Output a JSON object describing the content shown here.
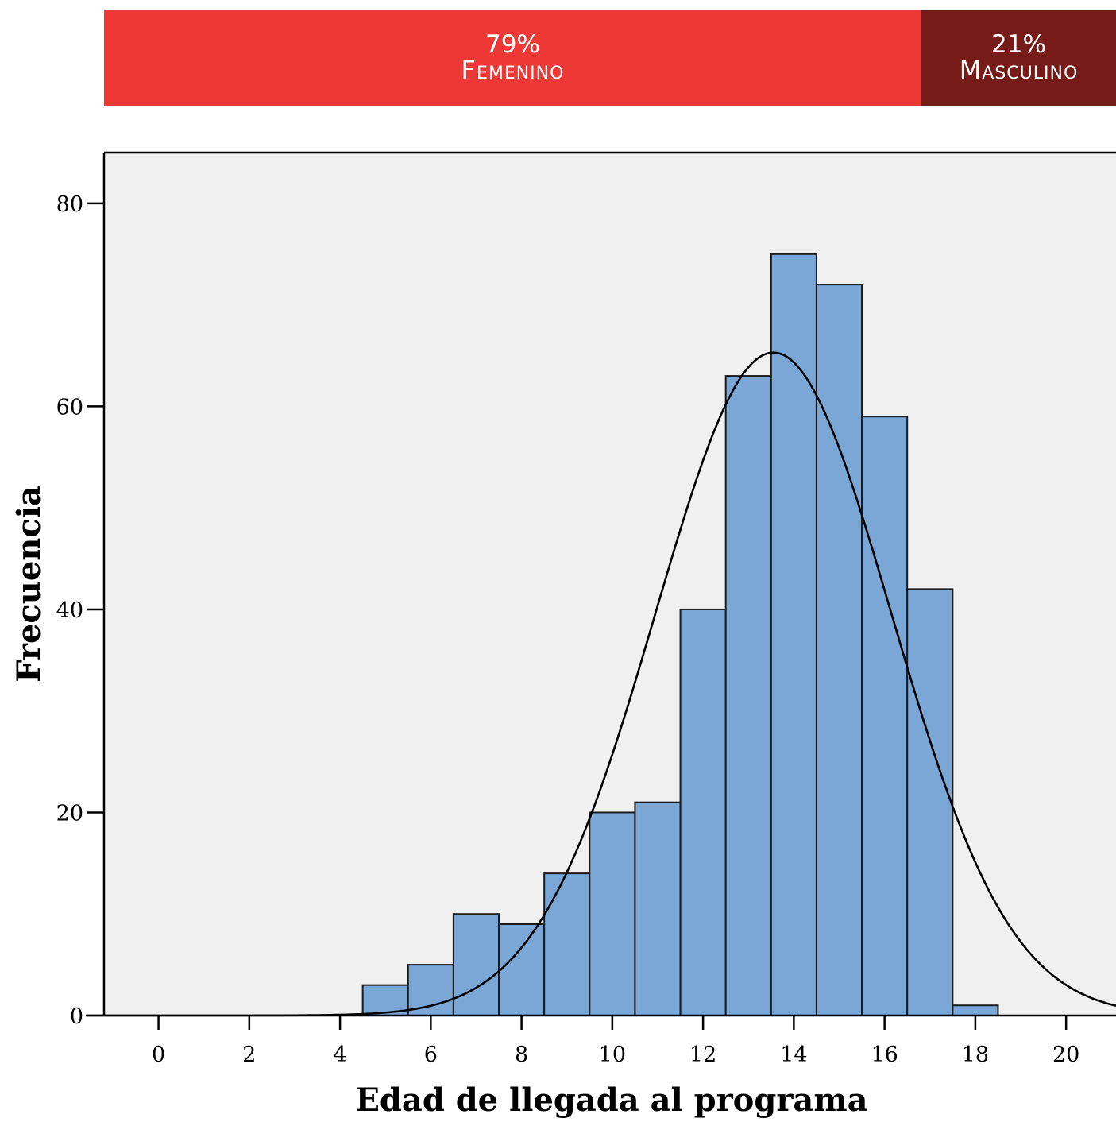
{
  "gender": {
    "female": {
      "percent": "79%",
      "label": "Femenino",
      "share": 0.79,
      "color": "#EE3835"
    },
    "male": {
      "percent": "21%",
      "label": "Masculino",
      "share": 0.21,
      "color": "#771B18"
    }
  },
  "chart_data": {
    "type": "bar",
    "subtype": "histogram",
    "title": "",
    "xlabel": "Edad de llegada al programa",
    "ylabel": "Frecuencia",
    "xlim": [
      -1.2,
      21.1
    ],
    "ylim": [
      0,
      85
    ],
    "x_ticks": [
      0,
      2,
      4,
      6,
      8,
      10,
      12,
      14,
      16,
      18,
      20
    ],
    "y_ticks": [
      0,
      20,
      40,
      60,
      80
    ],
    "bin_width": 1,
    "bins": [
      5,
      6,
      7,
      8,
      9,
      10,
      11,
      12,
      13,
      14,
      15,
      16,
      17,
      18
    ],
    "values": [
      3,
      5,
      10,
      9,
      14,
      20,
      21,
      40,
      63,
      75,
      72,
      59,
      42,
      1
    ],
    "normal_curve": {
      "mean": 13.55,
      "sd": 2.6,
      "peak": 65.3
    },
    "grid": false,
    "bar_color": "#7BA7D6",
    "bar_edge_color": "#1a1a1a",
    "plot_background": "#F0F0F0"
  }
}
